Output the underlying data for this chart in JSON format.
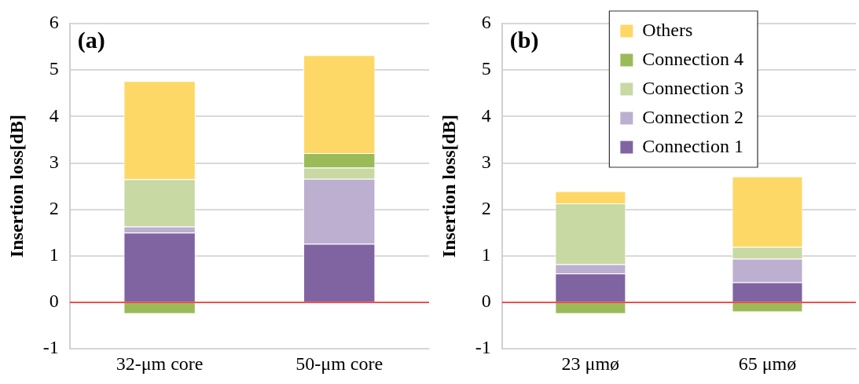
{
  "chart_data": [
    {
      "type": "bar",
      "stacked": true,
      "categories": [
        "32-μm core",
        "50-μm core"
      ],
      "ylabel": "Insertion loss[dB]",
      "ylim": [
        -1,
        6
      ],
      "yticks": [
        -1,
        0,
        1,
        2,
        3,
        4,
        5,
        6
      ],
      "grid": "y",
      "legend": false,
      "annotations": [
        "(a)"
      ],
      "ref_lines": [
        {
          "axis": "y",
          "value": 0,
          "color": "#ff0000"
        }
      ],
      "series": [
        {
          "color": "#8064a2",
          "values": [
            1.5,
            1.26
          ]
        },
        {
          "color": "#bcafcf",
          "values": [
            0.13,
            1.4
          ]
        },
        {
          "color": "#c8d9a4",
          "values": [
            1.02,
            0.24
          ]
        },
        {
          "color": "#9bbb59",
          "values": [
            -0.25,
            0.31
          ]
        },
        {
          "color": "#fed866",
          "values": [
            2.11,
            2.11
          ]
        }
      ]
    },
    {
      "type": "bar",
      "stacked": true,
      "categories": [
        "23 μmø",
        "65 μmø"
      ],
      "ylabel": "Insertion loss[dB]",
      "ylim": [
        -1,
        6
      ],
      "yticks": [
        -1,
        0,
        1,
        2,
        3,
        4,
        5,
        6
      ],
      "grid": "y",
      "legend": "top right",
      "annotations": [
        "(b)"
      ],
      "ref_lines": [
        {
          "axis": "y",
          "value": 0,
          "color": "#ff0000"
        }
      ],
      "series": [
        {
          "name": "Connection 1",
          "color": "#8064a2",
          "values": [
            0.62,
            0.43
          ]
        },
        {
          "name": "Connection 2",
          "color": "#bcafcf",
          "values": [
            0.2,
            0.51
          ]
        },
        {
          "name": "Connection 3",
          "color": "#c8d9a4",
          "values": [
            1.31,
            0.25
          ]
        },
        {
          "name": "Connection 4",
          "color": "#9bbb59",
          "values": [
            -0.25,
            -0.21
          ]
        },
        {
          "name": "Others",
          "color": "#fed866",
          "values": [
            0.26,
            1.52
          ]
        }
      ]
    }
  ]
}
